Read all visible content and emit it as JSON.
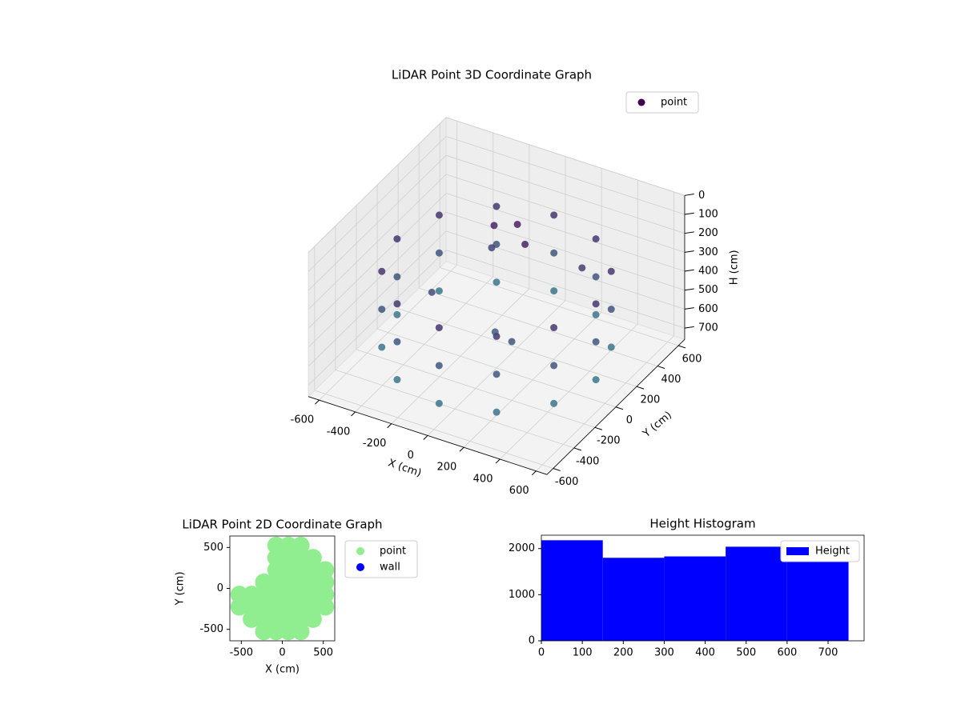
{
  "chart_data": [
    {
      "type": "scatter3d",
      "title": "LiDAR Point 3D Coordinate Graph",
      "x_label": "X (cm)",
      "y_label": "Y (cm)",
      "z_label": "H (cm)",
      "xlim": [
        -660,
        660
      ],
      "ylim": [
        -660,
        660
      ],
      "zlim": [
        760,
        0
      ],
      "xticks": [
        -600,
        -400,
        -200,
        0,
        200,
        400,
        600
      ],
      "yticks": [
        -600,
        -400,
        -200,
        0,
        200,
        400,
        600
      ],
      "zticks": [
        0,
        100,
        200,
        300,
        400,
        500,
        600,
        700
      ],
      "grid": true,
      "legend": "upper right",
      "colormap": [
        "#440154",
        "#2c7f8e"
      ],
      "series": [
        {
          "name": "point",
          "x": [
            550,
            476,
            275,
            0,
            -275,
            -476,
            -550,
            -476,
            -275,
            0,
            275,
            476,
            550,
            476,
            275,
            0,
            -275,
            -476,
            -550,
            -476,
            -275,
            0,
            275,
            476,
            550,
            476,
            275,
            0,
            -275,
            -476,
            -550,
            -476,
            -275,
            0,
            275,
            476,
            -100,
            0,
            100,
            -300,
            200,
            300,
            -200,
            50
          ],
          "y": [
            0,
            275,
            476,
            550,
            476,
            275,
            0,
            -275,
            -476,
            -550,
            -476,
            -275,
            0,
            275,
            476,
            550,
            476,
            275,
            0,
            -275,
            -476,
            -550,
            -476,
            -275,
            0,
            275,
            476,
            550,
            476,
            275,
            0,
            -275,
            -476,
            -550,
            -476,
            -275,
            150,
            200,
            100,
            -100,
            -200,
            300,
            300,
            -100
          ],
          "z": [
            250,
            250,
            250,
            250,
            250,
            250,
            250,
            250,
            250,
            250,
            250,
            250,
            450,
            450,
            450,
            450,
            450,
            450,
            450,
            450,
            450,
            450,
            450,
            450,
            650,
            650,
            650,
            650,
            650,
            650,
            650,
            650,
            650,
            650,
            650,
            650,
            120,
            110,
            130,
            400,
            450,
            300,
            350,
            500
          ]
        }
      ]
    },
    {
      "type": "scatter",
      "title": "LiDAR Point 2D Coordinate Graph",
      "x_label": "X (cm)",
      "y_label": "Y (cm)",
      "xlim": [
        -640,
        640
      ],
      "ylim": [
        -640,
        640
      ],
      "xticks": [
        -500,
        0,
        500
      ],
      "yticks": [
        -500,
        0,
        500
      ],
      "legend": "upper left outside",
      "series": [
        {
          "name": "point",
          "color": "#90ee90",
          "x": [
            -75,
            75,
            225,
            -75,
            75,
            225,
            375,
            -75,
            75,
            225,
            375,
            525,
            -225,
            -75,
            75,
            225,
            375,
            525,
            -525,
            -375,
            -225,
            -75,
            75,
            225,
            375,
            525,
            -525,
            -375,
            -225,
            -75,
            75,
            225,
            375,
            525,
            -375,
            -225,
            -75,
            75,
            225,
            375,
            -225,
            -75,
            75,
            225
          ],
          "y": [
            525,
            525,
            525,
            375,
            375,
            375,
            375,
            225,
            225,
            225,
            225,
            225,
            75,
            75,
            75,
            75,
            75,
            75,
            -75,
            -75,
            -75,
            -75,
            -75,
            -75,
            -75,
            -75,
            -225,
            -225,
            -225,
            -225,
            -225,
            -225,
            -225,
            -225,
            -375,
            -375,
            -375,
            -375,
            -375,
            -375,
            -525,
            -525,
            -525,
            -525
          ]
        },
        {
          "name": "wall",
          "color": "#0000ff",
          "x": [],
          "y": []
        }
      ]
    },
    {
      "type": "histogram",
      "title": "Height Histogram",
      "name": "Height",
      "color": "#0000ff",
      "bins": [
        0,
        150,
        300,
        450,
        600,
        750
      ],
      "values": [
        2180,
        1800,
        1830,
        2040,
        1820
      ],
      "xlim": [
        0,
        788
      ],
      "ylim": [
        0,
        2290
      ],
      "xticks": [
        0,
        100,
        200,
        300,
        400,
        500,
        600,
        700
      ],
      "yticks": [
        0,
        1000,
        2000
      ],
      "legend": "upper right"
    }
  ]
}
